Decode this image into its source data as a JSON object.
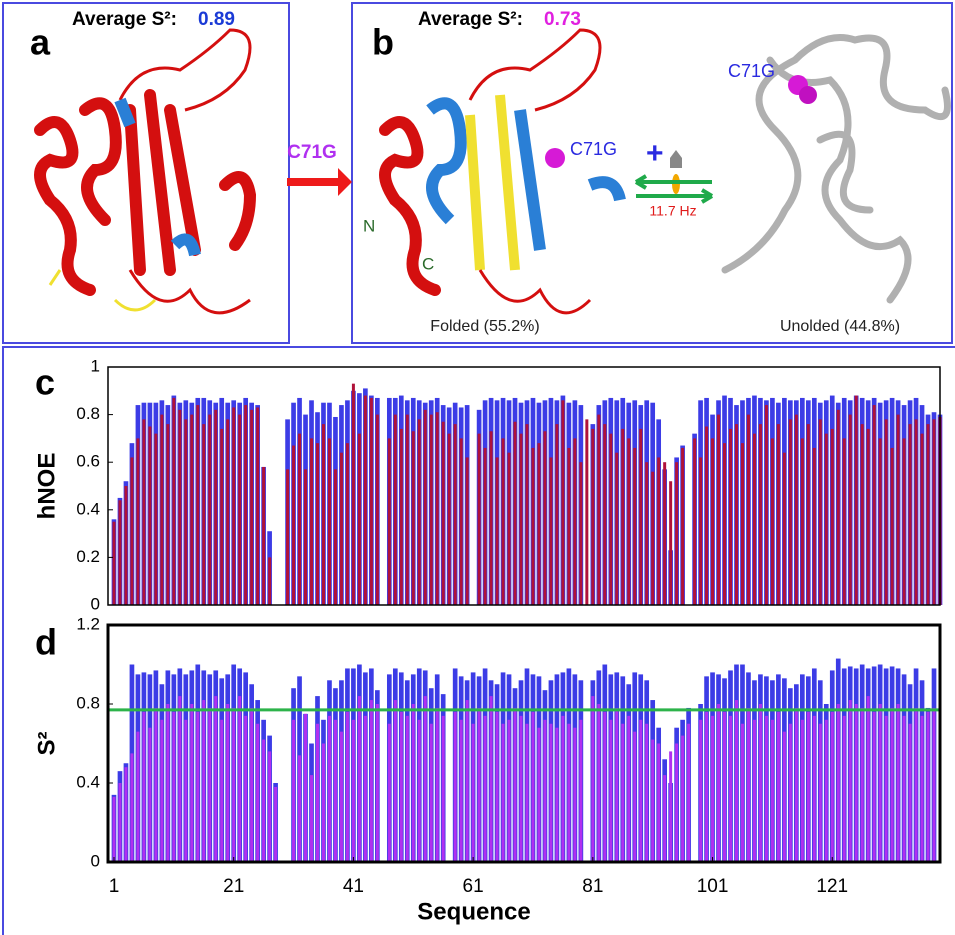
{
  "panels": {
    "a": {
      "label": "a",
      "avg_text": "Average S²:",
      "avg_value": "0.89"
    },
    "b": {
      "label": "b",
      "avg_text": "Average S²:",
      "avg_value": "0.73",
      "mutation_arrow": "C71G",
      "mutation_site": "C71G",
      "n_term": "N",
      "c_term": "C",
      "rate": "11.7 Hz",
      "folded": "Folded (55.2%)",
      "unfolded": "Unolded (44.8%)",
      "unfolded_site": "C71G"
    }
  },
  "chart_data": [
    {
      "type": "bar",
      "label": "c",
      "ylabel": "hNOE",
      "x": [
        1,
        2,
        3,
        4,
        5,
        6,
        7,
        8,
        9,
        10,
        11,
        12,
        13,
        14,
        15,
        16,
        17,
        18,
        19,
        20,
        21,
        22,
        23,
        24,
        25,
        26,
        27,
        28,
        29,
        30,
        31,
        32,
        33,
        34,
        35,
        36,
        37,
        38,
        39,
        40,
        41,
        42,
        43,
        44,
        45,
        46,
        47,
        48,
        49,
        50,
        51,
        52,
        53,
        54,
        55,
        56,
        57,
        58,
        59,
        60,
        61,
        62,
        63,
        64,
        65,
        66,
        67,
        68,
        69,
        70,
        71,
        72,
        73,
        74,
        75,
        76,
        77,
        78,
        79,
        80,
        81,
        82,
        83,
        84,
        85,
        86,
        87,
        88,
        89,
        90,
        91,
        92,
        93,
        94,
        95,
        96,
        97,
        98,
        99,
        100,
        101,
        102,
        103,
        104,
        105,
        106,
        107,
        108,
        109,
        110,
        111,
        112,
        113,
        114,
        115,
        116,
        117,
        118,
        119,
        120,
        121,
        122,
        123,
        124,
        125,
        126,
        127,
        128,
        129,
        130,
        131,
        132,
        133,
        134,
        135,
        136,
        137,
        138,
        139
      ],
      "series": [
        {
          "color": "#3c3ce6",
          "values": [
            0.36,
            0.45,
            0.52,
            0.68,
            0.84,
            0.85,
            0.85,
            0.85,
            0.86,
            0.84,
            0.88,
            0.85,
            0.86,
            0.85,
            0.87,
            0.87,
            0.86,
            0.85,
            0.87,
            0.85,
            0.86,
            0.85,
            0.87,
            0.85,
            0.84,
            0.58,
            0.31,
            null,
            null,
            0.78,
            0.85,
            0.87,
            0.8,
            0.86,
            0.81,
            0.85,
            0.85,
            0.79,
            0.84,
            0.86,
            0.9,
            0.89,
            0.91,
            0.88,
            0.87,
            null,
            0.87,
            0.87,
            0.88,
            0.86,
            0.87,
            0.86,
            0.85,
            0.86,
            0.87,
            0.84,
            0.83,
            0.85,
            0.83,
            0.84,
            null,
            0.82,
            0.86,
            0.87,
            0.86,
            0.87,
            0.86,
            0.87,
            0.85,
            0.86,
            0.87,
            0.85,
            0.86,
            0.87,
            0.86,
            0.88,
            0.85,
            0.86,
            0.84,
            null,
            0.76,
            0.84,
            0.86,
            0.87,
            0.86,
            0.87,
            0.85,
            0.86,
            0.84,
            0.86,
            0.85,
            0.78,
            0.57,
            0.23,
            0.62,
            0.67,
            null,
            0.72,
            0.86,
            0.87,
            0.8,
            0.86,
            0.88,
            0.87,
            0.84,
            0.86,
            0.87,
            0.88,
            0.87,
            0.86,
            0.87,
            0.85,
            0.87,
            0.86,
            0.86,
            0.87,
            0.86,
            0.87,
            0.85,
            0.86,
            0.88,
            0.85,
            0.87,
            0.86,
            0.88,
            0.87,
            0.86,
            0.87,
            0.85,
            0.86,
            0.87,
            0.86,
            0.84,
            0.86,
            0.87,
            0.84,
            0.8,
            0.81,
            0.8
          ]
        },
        {
          "color": "#b0123a",
          "values": [
            0.35,
            0.44,
            0.5,
            0.62,
            0.7,
            0.78,
            0.75,
            0.72,
            0.8,
            0.76,
            0.87,
            0.82,
            0.78,
            0.8,
            0.84,
            0.76,
            0.8,
            0.82,
            0.74,
            0.78,
            0.83,
            0.8,
            0.84,
            0.82,
            0.83,
            0.58,
            0.2,
            null,
            null,
            0.57,
            0.67,
            0.72,
            0.57,
            0.7,
            0.68,
            0.76,
            0.7,
            0.57,
            0.64,
            0.68,
            0.93,
            0.72,
            0.88,
            0.87,
            0.8,
            null,
            0.7,
            0.8,
            0.74,
            0.8,
            0.73,
            0.78,
            0.82,
            0.8,
            0.81,
            0.77,
            0.72,
            0.76,
            0.7,
            0.62,
            null,
            0.72,
            0.66,
            0.73,
            0.62,
            0.7,
            0.64,
            0.77,
            0.72,
            0.76,
            0.66,
            0.68,
            0.73,
            0.62,
            0.76,
            0.86,
            0.66,
            0.7,
            0.6,
            0.78,
            0.74,
            0.8,
            0.76,
            0.72,
            0.64,
            0.74,
            0.7,
            0.66,
            0.74,
            0.6,
            0.56,
            0.62,
            0.6,
            0.52,
            0.6,
            0.66,
            null,
            0.7,
            0.62,
            0.75,
            0.7,
            0.8,
            0.68,
            0.74,
            0.76,
            0.68,
            0.8,
            0.72,
            0.76,
            0.84,
            0.7,
            0.76,
            0.64,
            0.78,
            0.8,
            0.7,
            0.76,
            0.66,
            0.78,
            0.72,
            0.74,
            0.82,
            0.7,
            0.8,
            0.88,
            0.76,
            0.74,
            0.84,
            0.7,
            0.78,
            0.66,
            0.8,
            0.7,
            0.76,
            0.78,
            0.72,
            0.76,
            0.78,
            0.79
          ]
        }
      ],
      "xlim": [
        0,
        139
      ],
      "ylim": [
        0,
        1
      ],
      "yticks": [
        0,
        0.2,
        0.4,
        0.6,
        0.8,
        1
      ]
    },
    {
      "type": "bar",
      "label": "d",
      "ylabel": "S²",
      "xlabel": "Sequence",
      "x": [
        1,
        2,
        3,
        4,
        5,
        6,
        7,
        8,
        9,
        10,
        11,
        12,
        13,
        14,
        15,
        16,
        17,
        18,
        19,
        20,
        21,
        22,
        23,
        24,
        25,
        26,
        27,
        28,
        29,
        30,
        31,
        32,
        33,
        34,
        35,
        36,
        37,
        38,
        39,
        40,
        41,
        42,
        43,
        44,
        45,
        46,
        47,
        48,
        49,
        50,
        51,
        52,
        53,
        54,
        55,
        56,
        57,
        58,
        59,
        60,
        61,
        62,
        63,
        64,
        65,
        66,
        67,
        68,
        69,
        70,
        71,
        72,
        73,
        74,
        75,
        76,
        77,
        78,
        79,
        80,
        81,
        82,
        83,
        84,
        85,
        86,
        87,
        88,
        89,
        90,
        91,
        92,
        93,
        94,
        95,
        96,
        97,
        98,
        99,
        100,
        101,
        102,
        103,
        104,
        105,
        106,
        107,
        108,
        109,
        110,
        111,
        112,
        113,
        114,
        115,
        116,
        117,
        118,
        119,
        120,
        121,
        122,
        123,
        124,
        125,
        126,
        127,
        128,
        129,
        130,
        131,
        132,
        133,
        134,
        135,
        136,
        137,
        138,
        139
      ],
      "series": [
        {
          "color": "#3c3ce6",
          "values": [
            0.34,
            0.46,
            0.5,
            1.0,
            0.95,
            0.96,
            0.95,
            0.97,
            0.9,
            0.97,
            0.95,
            0.98,
            0.95,
            0.97,
            1.0,
            0.97,
            0.95,
            0.97,
            0.93,
            0.95,
            1.0,
            0.98,
            0.96,
            0.9,
            0.82,
            0.72,
            0.64,
            0.4,
            null,
            null,
            0.88,
            0.94,
            0.75,
            0.6,
            0.84,
            0.72,
            0.92,
            0.88,
            0.92,
            0.98,
            0.98,
            1.0,
            0.96,
            0.98,
            0.87,
            null,
            0.95,
            0.98,
            0.96,
            0.92,
            0.95,
            0.98,
            0.97,
            0.88,
            0.95,
            0.85,
            null,
            0.98,
            0.94,
            0.92,
            0.96,
            0.94,
            0.98,
            0.92,
            0.9,
            0.96,
            0.95,
            0.88,
            0.92,
            0.98,
            0.95,
            0.94,
            0.87,
            0.92,
            0.95,
            0.96,
            0.98,
            0.95,
            0.92,
            null,
            0.92,
            0.97,
            1.0,
            0.95,
            0.96,
            0.94,
            0.9,
            0.96,
            0.95,
            0.92,
            0.82,
            0.68,
            0.52,
            0.4,
            0.68,
            0.72,
            0.78,
            null,
            0.8,
            0.94,
            0.96,
            0.95,
            0.93,
            0.97,
            1.0,
            1.0,
            0.96,
            0.92,
            0.95,
            0.94,
            0.92,
            0.95,
            0.93,
            0.88,
            0.9,
            0.95,
            0.94,
            0.98,
            0.92,
            0.8,
            0.97,
            1.03,
            0.98,
            0.99,
            0.98,
            1.0,
            0.98,
            0.99,
            1.0,
            0.98,
            0.99,
            0.98,
            0.95,
            0.9,
            0.98,
            0.92,
            0.78,
            0.98,
            null
          ]
        },
        {
          "color": "#b030f0",
          "values": [
            0.33,
            0.4,
            0.48,
            0.55,
            0.66,
            0.76,
            0.68,
            0.78,
            0.72,
            0.8,
            0.76,
            0.84,
            0.72,
            0.8,
            0.76,
            0.82,
            0.78,
            0.84,
            0.72,
            0.8,
            0.78,
            0.84,
            0.74,
            0.78,
            0.7,
            0.62,
            0.56,
            0.38,
            null,
            null,
            0.72,
            0.54,
            0.75,
            0.44,
            0.7,
            0.6,
            0.74,
            0.72,
            0.66,
            0.76,
            0.72,
            0.84,
            0.74,
            0.82,
            0.8,
            null,
            0.7,
            0.82,
            0.76,
            0.74,
            0.8,
            0.72,
            0.84,
            0.7,
            0.78,
            0.74,
            null,
            0.76,
            0.72,
            0.82,
            0.7,
            0.78,
            0.74,
            0.84,
            0.76,
            0.7,
            0.72,
            0.78,
            0.74,
            0.7,
            0.76,
            0.68,
            0.72,
            0.7,
            0.68,
            0.74,
            0.7,
            0.68,
            0.72,
            null,
            0.84,
            0.8,
            0.76,
            0.72,
            0.78,
            0.7,
            0.74,
            0.66,
            0.72,
            0.7,
            0.62,
            0.6,
            0.44,
            0.56,
            0.6,
            0.64,
            0.7,
            null,
            0.72,
            0.76,
            0.74,
            0.8,
            0.76,
            0.74,
            0.82,
            0.7,
            0.78,
            0.72,
            0.8,
            0.74,
            0.72,
            0.76,
            0.66,
            0.7,
            0.78,
            0.72,
            0.76,
            0.74,
            0.7,
            0.72,
            0.76,
            0.8,
            0.74,
            0.82,
            0.8,
            0.78,
            0.84,
            0.76,
            0.8,
            0.74,
            0.78,
            0.8,
            0.74,
            0.7,
            0.78,
            0.74,
            0.76,
            0.78,
            null
          ]
        }
      ],
      "reference_line": {
        "value": 0.77,
        "color": "#2db34a"
      },
      "xlim": [
        0,
        139
      ],
      "xticks": [
        1,
        21,
        41,
        61,
        81,
        101,
        121
      ],
      "ylim": [
        0,
        1.2
      ],
      "yticks": [
        0,
        0.4,
        0.8,
        1.2
      ]
    }
  ]
}
